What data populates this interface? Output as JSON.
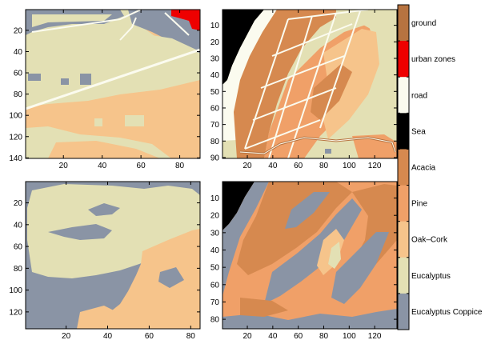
{
  "colors": {
    "eucalyptus_coppice": "#8a94a5",
    "eucalyptus": "#e3e0b4",
    "oak_cork": "#f6c48b",
    "pine": "#f0a068",
    "acacia": "#d6894f",
    "sea": "#000000",
    "road": "#fbfbef",
    "urban": "#ee0000",
    "ground": "#b77340"
  },
  "chart_data": [
    {
      "type": "heatmap",
      "position": "top-left",
      "xlim": [
        1,
        90
      ],
      "ylim": [
        1,
        140
      ],
      "x_ticks": [
        20,
        40,
        60,
        80
      ],
      "y_ticks": [
        20,
        40,
        60,
        80,
        100,
        120,
        140
      ],
      "x_tick_labels": [
        "20",
        "40",
        "60",
        "80"
      ],
      "y_tick_labels": [
        "20",
        "40",
        "60",
        "80",
        "100",
        "120",
        "140"
      ],
      "dominant_classes": [
        "Eucalyptus",
        "Oak–Cork",
        "Eucalyptus Coppice",
        "urban zones",
        "road"
      ]
    },
    {
      "type": "heatmap",
      "position": "top-right",
      "xlim": [
        1,
        137
      ],
      "ylim": [
        1,
        90
      ],
      "x_ticks": [
        20,
        40,
        60,
        80,
        100,
        120
      ],
      "y_ticks": [
        10,
        20,
        30,
        40,
        50,
        60,
        70,
        80,
        90
      ],
      "x_tick_labels": [
        "20",
        "40",
        "60",
        "80",
        "100",
        "120"
      ],
      "y_tick_labels": [
        "10",
        "20",
        "30",
        "40",
        "50",
        "60",
        "70",
        "80",
        "90"
      ],
      "dominant_classes": [
        "Sea",
        "Acacia",
        "Pine",
        "Oak–Cork",
        "Eucalyptus",
        "road",
        "ground"
      ]
    },
    {
      "type": "heatmap",
      "position": "bottom-left",
      "xlim": [
        1,
        84
      ],
      "ylim": [
        1,
        135
      ],
      "x_ticks": [
        20,
        40,
        60,
        80
      ],
      "y_ticks": [
        20,
        40,
        60,
        80,
        100,
        120
      ],
      "x_tick_labels": [
        "20",
        "40",
        "60",
        "80"
      ],
      "y_tick_labels": [
        "20",
        "40",
        "60",
        "80",
        "100",
        "120"
      ],
      "dominant_classes": [
        "Eucalyptus",
        "Eucalyptus Coppice",
        "Oak–Cork"
      ]
    },
    {
      "type": "heatmap",
      "position": "bottom-right",
      "xlim": [
        1,
        137
      ],
      "ylim": [
        1,
        85
      ],
      "x_ticks": [
        20,
        40,
        60,
        80,
        100,
        120
      ],
      "y_ticks": [
        10,
        20,
        30,
        40,
        50,
        60,
        70,
        80
      ],
      "x_tick_labels": [
        "20",
        "40",
        "60",
        "80",
        "100",
        "120"
      ],
      "y_tick_labels": [
        "10",
        "20",
        "30",
        "40",
        "50",
        "60",
        "70",
        "80"
      ],
      "dominant_classes": [
        "Sea",
        "Eucalyptus Coppice",
        "Acacia",
        "Pine",
        "Oak–Cork",
        "Eucalyptus"
      ]
    }
  ],
  "legend": {
    "type": "colorbar",
    "entries": [
      {
        "label": "ground",
        "color": "#b77340"
      },
      {
        "label": "urban  zones",
        "color": "#ee0000"
      },
      {
        "label": "road",
        "color": "#fbfbef"
      },
      {
        "label": "Sea",
        "color": "#000000"
      },
      {
        "label": "Acacia",
        "color": "#d6894f"
      },
      {
        "label": "Pine",
        "color": "#f0a068"
      },
      {
        "label": "Oak–Cork",
        "color": "#f6c48b"
      },
      {
        "label": "Eucalyptus",
        "color": "#e3e0b4"
      },
      {
        "label": "Eucalyptus Coppice",
        "color": "#8a94a5"
      }
    ]
  }
}
